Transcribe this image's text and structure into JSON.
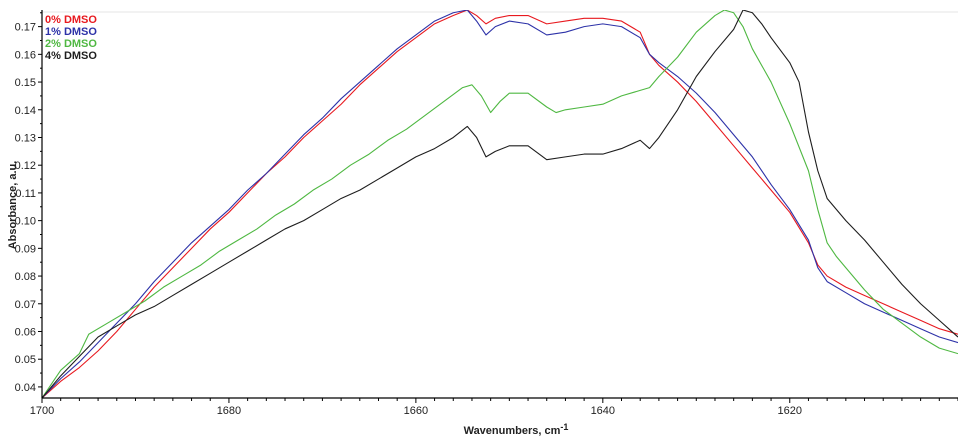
{
  "chart_data": {
    "type": "line",
    "title": "",
    "xlabel": "Wavenumbers, cm",
    "xlabel_superscript": "-1",
    "ylabel": "Absorbance, a.u.",
    "xlim": [
      1700,
      1602
    ],
    "ylim": [
      0.036,
      0.176
    ],
    "x_reversed": true,
    "grid": false,
    "legend_position": "top-left",
    "x_ticks": [
      1700,
      1680,
      1660,
      1640,
      1620
    ],
    "y_ticks": [
      0.04,
      0.05,
      0.06,
      0.07,
      0.08,
      0.09,
      0.1,
      0.11,
      0.12,
      0.13,
      0.14,
      0.15,
      0.16,
      0.17
    ],
    "y_tick_labels": [
      "0.04",
      "0.05",
      "0.06",
      "0.07",
      "0.08",
      "0.09",
      "0.10",
      "0.11",
      "0.12",
      "0.13",
      "0.14",
      "0.15",
      "0.16",
      "0.17"
    ],
    "series": [
      {
        "name": "0% DMSO",
        "color": "#e8191f",
        "points": [
          [
            1700,
            0.036
          ],
          [
            1698,
            0.042
          ],
          [
            1696,
            0.047
          ],
          [
            1694,
            0.053
          ],
          [
            1692,
            0.06
          ],
          [
            1690,
            0.068
          ],
          [
            1688,
            0.076
          ],
          [
            1686,
            0.083
          ],
          [
            1684,
            0.09
          ],
          [
            1682,
            0.097
          ],
          [
            1680,
            0.103
          ],
          [
            1678,
            0.11
          ],
          [
            1676,
            0.117
          ],
          [
            1674,
            0.123
          ],
          [
            1672,
            0.13
          ],
          [
            1670,
            0.136
          ],
          [
            1668,
            0.142
          ],
          [
            1666,
            0.149
          ],
          [
            1664,
            0.155
          ],
          [
            1662,
            0.161
          ],
          [
            1660,
            0.166
          ],
          [
            1658,
            0.171
          ],
          [
            1656,
            0.174
          ],
          [
            1654.5,
            0.176
          ],
          [
            1653.5,
            0.174
          ],
          [
            1652.5,
            0.171
          ],
          [
            1651.5,
            0.173
          ],
          [
            1650,
            0.174
          ],
          [
            1648,
            0.174
          ],
          [
            1646,
            0.171
          ],
          [
            1644,
            0.172
          ],
          [
            1642,
            0.173
          ],
          [
            1640,
            0.173
          ],
          [
            1638,
            0.172
          ],
          [
            1636,
            0.168
          ],
          [
            1635,
            0.16
          ],
          [
            1634,
            0.156
          ],
          [
            1632,
            0.15
          ],
          [
            1630,
            0.143
          ],
          [
            1628,
            0.135
          ],
          [
            1626,
            0.127
          ],
          [
            1624,
            0.119
          ],
          [
            1622,
            0.111
          ],
          [
            1620,
            0.103
          ],
          [
            1618,
            0.092
          ],
          [
            1617,
            0.084
          ],
          [
            1616,
            0.08
          ],
          [
            1614,
            0.076
          ],
          [
            1612,
            0.073
          ],
          [
            1610,
            0.07
          ],
          [
            1608,
            0.067
          ],
          [
            1606,
            0.064
          ],
          [
            1604,
            0.061
          ],
          [
            1602,
            0.059
          ]
        ]
      },
      {
        "name": "1% DMSO",
        "color": "#2d32a8",
        "points": [
          [
            1700,
            0.036
          ],
          [
            1698,
            0.043
          ],
          [
            1696,
            0.049
          ],
          [
            1694,
            0.056
          ],
          [
            1692,
            0.063
          ],
          [
            1690,
            0.07
          ],
          [
            1688,
            0.078
          ],
          [
            1686,
            0.085
          ],
          [
            1684,
            0.092
          ],
          [
            1682,
            0.098
          ],
          [
            1680,
            0.104
          ],
          [
            1678,
            0.111
          ],
          [
            1676,
            0.117
          ],
          [
            1674,
            0.124
          ],
          [
            1672,
            0.131
          ],
          [
            1670,
            0.137
          ],
          [
            1668,
            0.144
          ],
          [
            1666,
            0.15
          ],
          [
            1664,
            0.156
          ],
          [
            1662,
            0.162
          ],
          [
            1660,
            0.167
          ],
          [
            1658,
            0.172
          ],
          [
            1656,
            0.175
          ],
          [
            1654.5,
            0.176
          ],
          [
            1653.5,
            0.172
          ],
          [
            1652.5,
            0.167
          ],
          [
            1651.5,
            0.17
          ],
          [
            1650,
            0.172
          ],
          [
            1648,
            0.171
          ],
          [
            1646,
            0.167
          ],
          [
            1644,
            0.168
          ],
          [
            1642,
            0.17
          ],
          [
            1640,
            0.171
          ],
          [
            1638,
            0.17
          ],
          [
            1636,
            0.166
          ],
          [
            1635,
            0.16
          ],
          [
            1634,
            0.157
          ],
          [
            1632,
            0.152
          ],
          [
            1630,
            0.146
          ],
          [
            1628,
            0.139
          ],
          [
            1626,
            0.131
          ],
          [
            1624,
            0.123
          ],
          [
            1622,
            0.113
          ],
          [
            1620,
            0.104
          ],
          [
            1618,
            0.093
          ],
          [
            1617,
            0.083
          ],
          [
            1616,
            0.078
          ],
          [
            1614,
            0.074
          ],
          [
            1612,
            0.07
          ],
          [
            1610,
            0.067
          ],
          [
            1608,
            0.064
          ],
          [
            1606,
            0.061
          ],
          [
            1604,
            0.058
          ],
          [
            1602,
            0.056
          ]
        ]
      },
      {
        "name": "2% DMSO",
        "color": "#4fb842",
        "points": [
          [
            1700,
            0.036
          ],
          [
            1698,
            0.046
          ],
          [
            1696,
            0.052
          ],
          [
            1695,
            0.059
          ],
          [
            1693,
            0.063
          ],
          [
            1691,
            0.067
          ],
          [
            1689,
            0.071
          ],
          [
            1687,
            0.076
          ],
          [
            1685,
            0.08
          ],
          [
            1683,
            0.084
          ],
          [
            1681,
            0.089
          ],
          [
            1679,
            0.093
          ],
          [
            1677,
            0.097
          ],
          [
            1675,
            0.102
          ],
          [
            1673,
            0.106
          ],
          [
            1671,
            0.111
          ],
          [
            1669,
            0.115
          ],
          [
            1667,
            0.12
          ],
          [
            1665,
            0.124
          ],
          [
            1663,
            0.129
          ],
          [
            1661,
            0.133
          ],
          [
            1659,
            0.138
          ],
          [
            1657,
            0.143
          ],
          [
            1655,
            0.148
          ],
          [
            1654,
            0.149
          ],
          [
            1653,
            0.145
          ],
          [
            1652,
            0.139
          ],
          [
            1651,
            0.143
          ],
          [
            1650,
            0.146
          ],
          [
            1648,
            0.146
          ],
          [
            1646,
            0.141
          ],
          [
            1645,
            0.139
          ],
          [
            1644,
            0.14
          ],
          [
            1642,
            0.141
          ],
          [
            1640,
            0.142
          ],
          [
            1638,
            0.145
          ],
          [
            1636,
            0.147
          ],
          [
            1635,
            0.148
          ],
          [
            1634,
            0.152
          ],
          [
            1632,
            0.159
          ],
          [
            1630,
            0.168
          ],
          [
            1628,
            0.174
          ],
          [
            1627,
            0.176
          ],
          [
            1626,
            0.175
          ],
          [
            1625,
            0.17
          ],
          [
            1624,
            0.162
          ],
          [
            1622,
            0.15
          ],
          [
            1620,
            0.135
          ],
          [
            1618,
            0.118
          ],
          [
            1617,
            0.104
          ],
          [
            1616,
            0.092
          ],
          [
            1615,
            0.087
          ],
          [
            1614,
            0.083
          ],
          [
            1612,
            0.075
          ],
          [
            1610,
            0.068
          ],
          [
            1608,
            0.063
          ],
          [
            1606,
            0.058
          ],
          [
            1604,
            0.054
          ],
          [
            1602,
            0.052
          ]
        ]
      },
      {
        "name": "4% DMSO",
        "color": "#1e1e1e",
        "points": [
          [
            1700,
            0.036
          ],
          [
            1698,
            0.044
          ],
          [
            1696,
            0.051
          ],
          [
            1694,
            0.058
          ],
          [
            1692,
            0.062
          ],
          [
            1690,
            0.066
          ],
          [
            1688,
            0.069
          ],
          [
            1686,
            0.073
          ],
          [
            1684,
            0.077
          ],
          [
            1682,
            0.081
          ],
          [
            1680,
            0.085
          ],
          [
            1678,
            0.089
          ],
          [
            1676,
            0.093
          ],
          [
            1674,
            0.097
          ],
          [
            1672,
            0.1
          ],
          [
            1670,
            0.104
          ],
          [
            1668,
            0.108
          ],
          [
            1666,
            0.111
          ],
          [
            1664,
            0.115
          ],
          [
            1662,
            0.119
          ],
          [
            1660,
            0.123
          ],
          [
            1658,
            0.126
          ],
          [
            1656,
            0.13
          ],
          [
            1654.5,
            0.134
          ],
          [
            1653.5,
            0.13
          ],
          [
            1652.5,
            0.123
          ],
          [
            1651.5,
            0.125
          ],
          [
            1650,
            0.127
          ],
          [
            1648,
            0.127
          ],
          [
            1646,
            0.122
          ],
          [
            1644,
            0.123
          ],
          [
            1642,
            0.124
          ],
          [
            1640,
            0.124
          ],
          [
            1638,
            0.126
          ],
          [
            1636,
            0.129
          ],
          [
            1635,
            0.126
          ],
          [
            1634,
            0.13
          ],
          [
            1632,
            0.14
          ],
          [
            1630,
            0.152
          ],
          [
            1628,
            0.161
          ],
          [
            1626,
            0.169
          ],
          [
            1625,
            0.176
          ],
          [
            1624,
            0.175
          ],
          [
            1623,
            0.171
          ],
          [
            1622,
            0.166
          ],
          [
            1620,
            0.157
          ],
          [
            1619,
            0.15
          ],
          [
            1618,
            0.132
          ],
          [
            1617,
            0.118
          ],
          [
            1616,
            0.108
          ],
          [
            1614,
            0.1
          ],
          [
            1612,
            0.093
          ],
          [
            1610,
            0.085
          ],
          [
            1608,
            0.077
          ],
          [
            1606,
            0.07
          ],
          [
            1604,
            0.064
          ],
          [
            1602,
            0.058
          ]
        ]
      }
    ]
  }
}
